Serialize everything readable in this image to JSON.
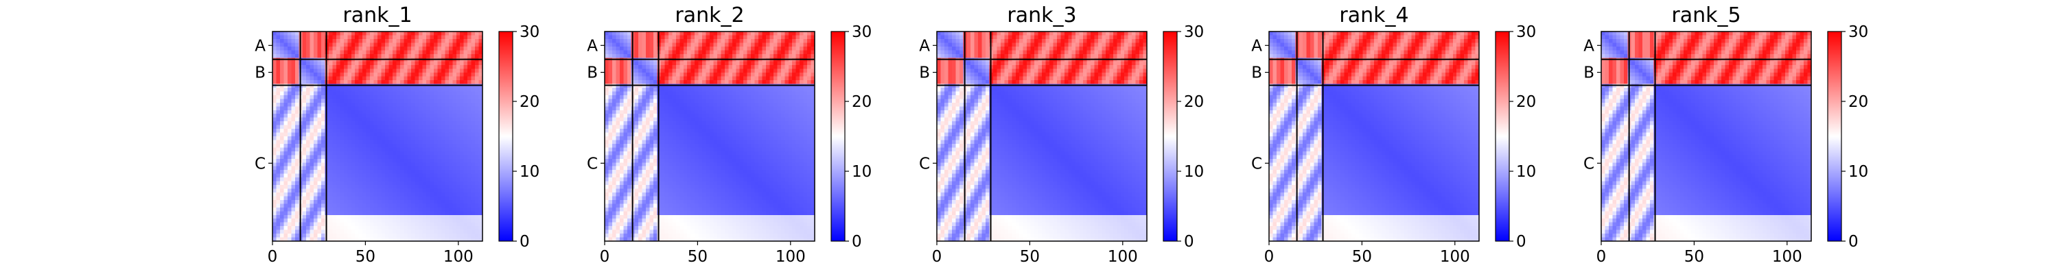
{
  "chart_data": {
    "type": "heatmap",
    "chains": [
      {
        "label": "A",
        "start": 0,
        "end": 15
      },
      {
        "label": "B",
        "start": 15,
        "end": 29
      },
      {
        "label": "C",
        "start": 29,
        "end": 113
      }
    ],
    "xlim": [
      0,
      113
    ],
    "xticks": [
      "0",
      "50",
      "100"
    ],
    "xtick_values": [
      0,
      50,
      100
    ],
    "colorbar": {
      "range": [
        0,
        30
      ],
      "ticks": [
        "0",
        "10",
        "20",
        "30"
      ],
      "tick_values": [
        0,
        10,
        20,
        30
      ],
      "colors": [
        "#0000ff",
        "#ffffff",
        "#ff0000"
      ]
    },
    "panels": [
      {
        "title": "rank_1"
      },
      {
        "title": "rank_2"
      },
      {
        "title": "rank_3"
      },
      {
        "title": "rank_4"
      },
      {
        "title": "rank_5"
      }
    ]
  }
}
